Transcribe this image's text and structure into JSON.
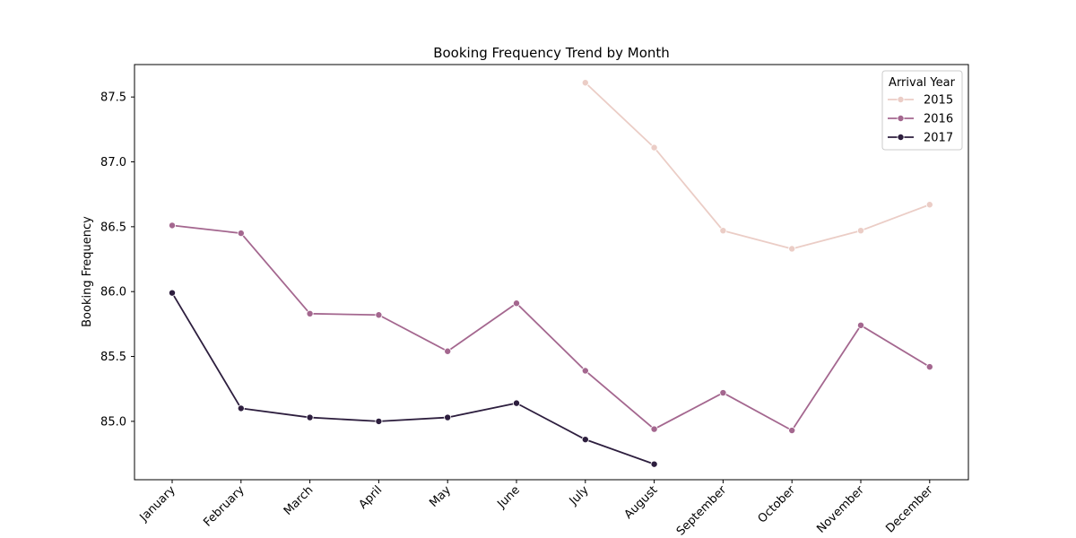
{
  "chart_data": {
    "type": "line",
    "title": "Booking Frequency Trend by Month",
    "xlabel": "",
    "ylabel": "Booking Frequency",
    "ylim": [
      84.55,
      87.75
    ],
    "yticks": [
      85.0,
      85.5,
      86.0,
      86.5,
      87.0,
      87.5
    ],
    "ytick_labels": [
      "85.0",
      "85.5",
      "86.0",
      "86.5",
      "87.0",
      "87.5"
    ],
    "categories": [
      "January",
      "February",
      "March",
      "April",
      "May",
      "June",
      "July",
      "August",
      "September",
      "October",
      "November",
      "December"
    ],
    "grid": false,
    "legend": {
      "title": "Arrival Year",
      "placement": "top-right"
    },
    "series": [
      {
        "name": "2015",
        "color": "#ebcdc6",
        "values": [
          null,
          null,
          null,
          null,
          null,
          null,
          87.61,
          87.11,
          86.47,
          86.33,
          86.47,
          86.67
        ]
      },
      {
        "name": "2016",
        "color": "#a4678f",
        "values": [
          86.51,
          86.45,
          85.83,
          85.82,
          85.54,
          85.91,
          85.39,
          84.94,
          85.22,
          84.93,
          85.74,
          85.42
        ]
      },
      {
        "name": "2017",
        "color": "#2d1e3e",
        "values": [
          85.99,
          85.1,
          85.03,
          85.0,
          85.03,
          85.14,
          84.86,
          84.67,
          null,
          null,
          null,
          null
        ]
      }
    ]
  }
}
